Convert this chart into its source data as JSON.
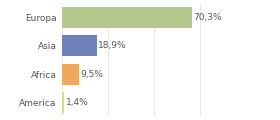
{
  "categories": [
    "Europa",
    "Asia",
    "Africa",
    "America"
  ],
  "values": [
    70.3,
    18.9,
    9.5,
    1.4
  ],
  "labels": [
    "70,3%",
    "18,9%",
    "9,5%",
    "1,4%"
  ],
  "bar_colors": [
    "#b5c98e",
    "#6d82b8",
    "#f0a860",
    "#e8d87a"
  ],
  "background_color": "#ffffff",
  "xlim": [
    0,
    100
  ],
  "bar_height": 0.75,
  "label_fontsize": 6.5,
  "tick_fontsize": 6.5,
  "grid_color": "#dddddd",
  "text_color": "#555555"
}
